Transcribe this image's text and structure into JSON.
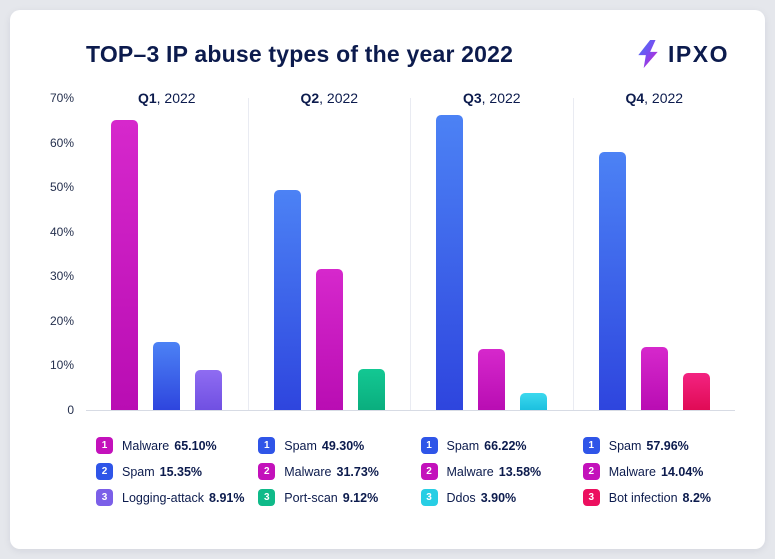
{
  "brand": {
    "name": "IPXO"
  },
  "chart_data": {
    "type": "bar",
    "title": "TOP–3 IP abuse types of the year 2022",
    "xlabel": "",
    "ylabel": "",
    "ylim": [
      0,
      70
    ],
    "grid": false,
    "legend_position": "bottom",
    "yticks": [
      "70%",
      "60%",
      "50%",
      "40%",
      "30%",
      "20%",
      "10%",
      "0"
    ],
    "groups": [
      {
        "quarter": "Q1",
        "quarter_suffix": ", 2022",
        "bars": [
          {
            "rank": "1",
            "label": "Malware",
            "value": 65.1,
            "percent_text": "65.10%",
            "color_top": "#d628cc",
            "color_bottom": "#b90db3",
            "color_badge": "#c311bb"
          },
          {
            "rank": "2",
            "label": "Spam",
            "value": 15.35,
            "percent_text": "15.35%",
            "color_top": "#4c82f5",
            "color_bottom": "#2e45de",
            "color_badge": "#2f55e8"
          },
          {
            "rank": "3",
            "label": "Logging-attack",
            "value": 8.91,
            "percent_text": "8.91%",
            "color_top": "#8f6cf2",
            "color_bottom": "#7050e2",
            "color_badge": "#7b5fe8"
          }
        ]
      },
      {
        "quarter": "Q2",
        "quarter_suffix": ", 2022",
        "bars": [
          {
            "rank": "1",
            "label": "Spam",
            "value": 49.3,
            "percent_text": "49.30%",
            "color_top": "#4c82f5",
            "color_bottom": "#2e45de",
            "color_badge": "#2f55e8"
          },
          {
            "rank": "2",
            "label": "Malware",
            "value": 31.73,
            "percent_text": "31.73%",
            "color_top": "#d628cc",
            "color_bottom": "#b90db3",
            "color_badge": "#c311bb"
          },
          {
            "rank": "3",
            "label": "Port-scan",
            "value": 9.12,
            "percent_text": "9.12%",
            "color_top": "#13c893",
            "color_bottom": "#0aae7e",
            "color_badge": "#0fba89"
          }
        ]
      },
      {
        "quarter": "Q3",
        "quarter_suffix": ", 2022",
        "bars": [
          {
            "rank": "1",
            "label": "Spam",
            "value": 66.22,
            "percent_text": "66.22%",
            "color_top": "#4c82f5",
            "color_bottom": "#2e45de",
            "color_badge": "#2f55e8"
          },
          {
            "rank": "2",
            "label": "Malware",
            "value": 13.58,
            "percent_text": "13.58%",
            "color_top": "#d628cc",
            "color_bottom": "#b90db3",
            "color_badge": "#c311bb"
          },
          {
            "rank": "3",
            "label": "Ddos",
            "value": 3.9,
            "percent_text": "3.90%",
            "color_top": "#3cd9ee",
            "color_bottom": "#1cc0df",
            "color_badge": "#27cee4"
          }
        ]
      },
      {
        "quarter": "Q4",
        "quarter_suffix": ", 2022",
        "bars": [
          {
            "rank": "1",
            "label": "Spam",
            "value": 57.96,
            "percent_text": "57.96%",
            "color_top": "#4c82f5",
            "color_bottom": "#2e45de",
            "color_badge": "#2f55e8"
          },
          {
            "rank": "2",
            "label": "Malware",
            "value": 14.04,
            "percent_text": "14.04%",
            "color_top": "#d628cc",
            "color_bottom": "#b90db3",
            "color_badge": "#c311bb"
          },
          {
            "rank": "3",
            "label": "Bot infection",
            "value": 8.2,
            "percent_text": "8.2%",
            "color_top": "#f32381",
            "color_bottom": "#e00b55",
            "color_badge": "#ec0f5f"
          }
        ]
      }
    ]
  }
}
